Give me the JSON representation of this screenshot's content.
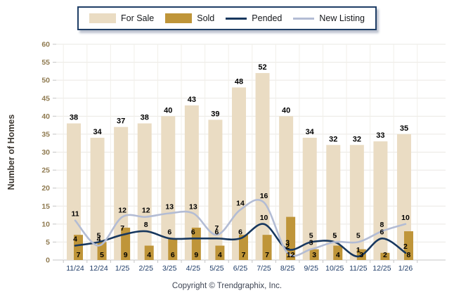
{
  "footer": {
    "copyright": "Copyright © Trendgraphix, Inc."
  },
  "colors": {
    "for_sale_bar": "#EADCC3",
    "sold_bar": "#BF9539",
    "pended_line": "#17375E",
    "new_listing_line": "#B3BCD4",
    "data_label": "#000000",
    "y_tick_label": "#8f7a50",
    "x_tick_label": "#1c3a66",
    "y_axis_title": "#3b362f",
    "gridline": "#eae8e3",
    "axis_line": "#c4c4c4",
    "legend_border": "#1F3E66"
  },
  "chart_data": {
    "type": "bar",
    "title": "",
    "categories": [
      "11/24",
      "12/24",
      "1/25",
      "2/25",
      "3/25",
      "4/25",
      "5/25",
      "6/25",
      "7/25",
      "8/25",
      "9/25",
      "10/25",
      "11/25",
      "12/25",
      "1/26"
    ],
    "series": [
      {
        "name": "For Sale",
        "type": "bar",
        "color": "#EADCC3",
        "values": [
          38,
          34,
          37,
          38,
          40,
          43,
          39,
          48,
          52,
          40,
          34,
          32,
          32,
          33,
          35
        ]
      },
      {
        "name": "Sold",
        "type": "bar",
        "color": "#BF9539",
        "values": [
          7,
          5,
          9,
          4,
          6,
          9,
          4,
          7,
          7,
          12,
          3,
          4,
          3,
          2,
          8
        ]
      },
      {
        "name": "Pended",
        "type": "line",
        "color": "#17375E",
        "values": [
          4,
          5,
          7,
          8,
          6,
          6,
          6,
          6,
          10,
          3,
          5,
          5,
          1,
          6,
          2
        ]
      },
      {
        "name": "New Listing",
        "type": "line",
        "color": "#B3BCD4",
        "values": [
          11,
          4,
          12,
          12,
          13,
          13,
          7,
          14,
          16,
          2,
          3,
          5,
          5,
          8,
          10
        ]
      }
    ],
    "xlabel": "",
    "ylabel": "Number of Homes",
    "ylim": [
      0,
      60
    ],
    "ytick_step": 5,
    "grid": true,
    "legend_position": "top"
  }
}
